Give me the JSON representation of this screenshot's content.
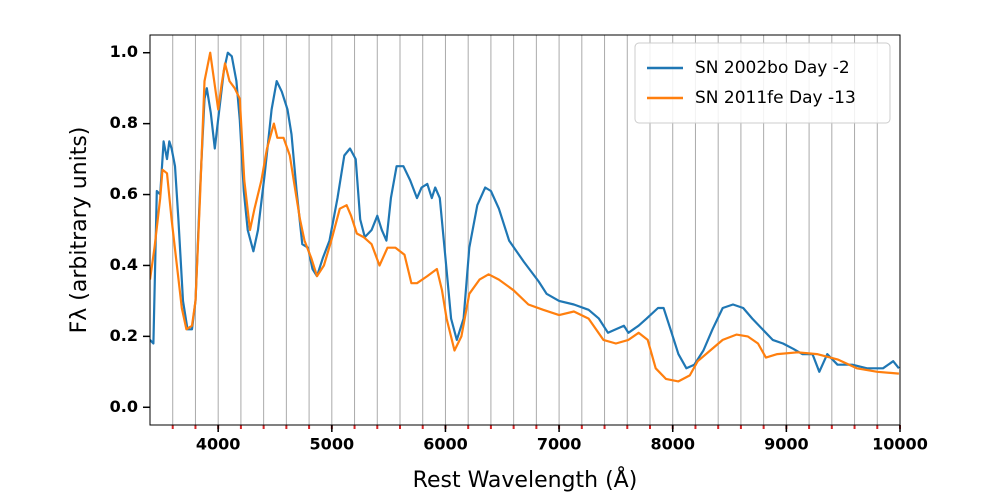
{
  "chart_data": {
    "type": "line",
    "xlabel": "Rest Wavelength (Å)",
    "ylabel": "Fλ (arbitrary units)",
    "xlim": [
      3400,
      10000
    ],
    "ylim": [
      -0.05,
      1.05
    ],
    "xticks": [
      4000,
      5000,
      6000,
      7000,
      8000,
      9000,
      10000
    ],
    "xminorticks": [
      3600,
      3800,
      4000,
      4200,
      4400,
      4600,
      4800,
      5000,
      5200,
      5400,
      5600,
      5800,
      6000,
      6200,
      6400,
      6600,
      6800,
      7000,
      7200,
      7400,
      7600,
      7800,
      8000,
      8200,
      8400,
      8600,
      8800,
      9000,
      9200,
      9400,
      9600,
      9800,
      10000
    ],
    "minor_tick_color": "#d62728",
    "yticks": [
      {
        "value": 0,
        "label": "0.0"
      },
      0.2,
      0.4,
      0.6,
      {
        "value": 1,
        "label": "1.0"
      },
      0.8
    ],
    "grid": true,
    "legend": "upper right",
    "series": [
      {
        "name": "SN 2002bo Day -2",
        "color": "#1f77b4",
        "x": [
          3400,
          3430,
          3460,
          3490,
          3520,
          3550,
          3570,
          3590,
          3620,
          3650,
          3690,
          3730,
          3770,
          3800,
          3840,
          3880,
          3900,
          3935,
          3970,
          4010,
          4050,
          4085,
          4120,
          4160,
          4190,
          4225,
          4260,
          4310,
          4350,
          4410,
          4470,
          4515,
          4560,
          4610,
          4645,
          4690,
          4740,
          4790,
          4830,
          4870,
          4920,
          4980,
          5050,
          5110,
          5160,
          5210,
          5250,
          5290,
          5350,
          5400,
          5440,
          5480,
          5520,
          5570,
          5630,
          5690,
          5750,
          5790,
          5840,
          5880,
          5910,
          5950,
          6000,
          6050,
          6100,
          6160,
          6210,
          6280,
          6350,
          6400,
          6470,
          6560,
          6690,
          6820,
          6890,
          7000,
          7130,
          7260,
          7350,
          7430,
          7500,
          7570,
          7610,
          7700,
          7770,
          7870,
          7920,
          7980,
          8050,
          8120,
          8190,
          8270,
          8350,
          8440,
          8530,
          8620,
          8700,
          8790,
          8880,
          8970,
          9060,
          9140,
          9230,
          9290,
          9360,
          9450,
          9580,
          9710,
          9850,
          9940,
          9990
        ],
        "values": [
          0.19,
          0.18,
          0.61,
          0.6,
          0.75,
          0.7,
          0.75,
          0.73,
          0.68,
          0.53,
          0.3,
          0.22,
          0.22,
          0.3,
          0.61,
          0.87,
          0.9,
          0.83,
          0.73,
          0.84,
          0.95,
          1.0,
          0.99,
          0.92,
          0.81,
          0.61,
          0.5,
          0.44,
          0.5,
          0.66,
          0.84,
          0.92,
          0.89,
          0.84,
          0.77,
          0.61,
          0.46,
          0.45,
          0.39,
          0.37,
          0.42,
          0.47,
          0.59,
          0.71,
          0.73,
          0.7,
          0.53,
          0.48,
          0.5,
          0.54,
          0.5,
          0.47,
          0.59,
          0.68,
          0.68,
          0.64,
          0.59,
          0.62,
          0.63,
          0.59,
          0.62,
          0.59,
          0.42,
          0.25,
          0.19,
          0.25,
          0.45,
          0.57,
          0.62,
          0.61,
          0.56,
          0.47,
          0.41,
          0.355,
          0.32,
          0.3,
          0.29,
          0.275,
          0.25,
          0.21,
          0.22,
          0.23,
          0.21,
          0.23,
          0.25,
          0.28,
          0.28,
          0.22,
          0.15,
          0.11,
          0.12,
          0.16,
          0.22,
          0.28,
          0.29,
          0.28,
          0.25,
          0.22,
          0.19,
          0.18,
          0.165,
          0.15,
          0.15,
          0.1,
          0.15,
          0.12,
          0.12,
          0.11,
          0.11,
          0.13,
          0.11
        ]
      },
      {
        "name": "SN 2011fe Day -13",
        "color": "#ff7f0e",
        "x": [
          3400,
          3440,
          3490,
          3510,
          3550,
          3590,
          3640,
          3680,
          3720,
          3770,
          3800,
          3840,
          3880,
          3930,
          3965,
          4000,
          4030,
          4060,
          4100,
          4145,
          4190,
          4230,
          4280,
          4320,
          4380,
          4430,
          4490,
          4520,
          4575,
          4630,
          4670,
          4720,
          4760,
          4820,
          4870,
          4930,
          4995,
          5070,
          5130,
          5170,
          5220,
          5280,
          5350,
          5420,
          5490,
          5560,
          5640,
          5700,
          5750,
          5840,
          5925,
          5970,
          6010,
          6080,
          6140,
          6210,
          6300,
          6380,
          6470,
          6600,
          6730,
          6860,
          7000,
          7130,
          7260,
          7390,
          7500,
          7610,
          7700,
          7780,
          7850,
          7940,
          8050,
          8150,
          8220,
          8330,
          8440,
          8560,
          8660,
          8750,
          8820,
          8920,
          9100,
          9270,
          9450,
          9620,
          9800,
          9990
        ],
        "values": [
          0.36,
          0.45,
          0.59,
          0.67,
          0.66,
          0.53,
          0.39,
          0.28,
          0.22,
          0.23,
          0.3,
          0.59,
          0.92,
          1.0,
          0.92,
          0.84,
          0.91,
          0.97,
          0.92,
          0.9,
          0.87,
          0.64,
          0.5,
          0.56,
          0.64,
          0.73,
          0.8,
          0.76,
          0.76,
          0.71,
          0.63,
          0.53,
          0.47,
          0.42,
          0.37,
          0.4,
          0.47,
          0.56,
          0.57,
          0.54,
          0.49,
          0.48,
          0.46,
          0.4,
          0.45,
          0.45,
          0.43,
          0.35,
          0.35,
          0.37,
          0.39,
          0.33,
          0.25,
          0.16,
          0.2,
          0.32,
          0.36,
          0.375,
          0.36,
          0.33,
          0.29,
          0.275,
          0.26,
          0.27,
          0.25,
          0.19,
          0.18,
          0.19,
          0.21,
          0.19,
          0.11,
          0.08,
          0.073,
          0.09,
          0.13,
          0.16,
          0.19,
          0.205,
          0.2,
          0.18,
          0.14,
          0.15,
          0.155,
          0.15,
          0.135,
          0.11,
          0.1,
          0.095
        ]
      }
    ]
  }
}
